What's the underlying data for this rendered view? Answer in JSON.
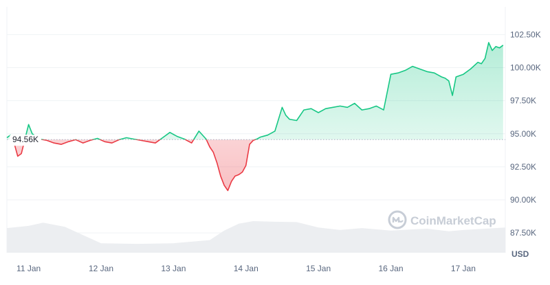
{
  "chart_data": {
    "type": "area",
    "currency_unit": "USD",
    "baseline_value": 94560,
    "baseline_label": "94.56K",
    "y_ticks": [
      {
        "value": 87500,
        "label": "87.50K"
      },
      {
        "value": 90000,
        "label": "90.00K"
      },
      {
        "value": 92500,
        "label": "92.50K"
      },
      {
        "value": 95000,
        "label": "95.00K"
      },
      {
        "value": 97500,
        "label": "97.50K"
      },
      {
        "value": 100000,
        "label": "100.00K"
      },
      {
        "value": 102500,
        "label": "102.50K"
      }
    ],
    "x_ticks": [
      {
        "value": 11,
        "label": "11 Jan"
      },
      {
        "value": 12,
        "label": "12 Jan"
      },
      {
        "value": 13,
        "label": "13 Jan"
      },
      {
        "value": 14,
        "label": "14 Jan"
      },
      {
        "value": 15,
        "label": "15 Jan"
      },
      {
        "value": 16,
        "label": "16 Jan"
      },
      {
        "value": 17,
        "label": "17 Jan"
      }
    ],
    "x_range": [
      10.7,
      17.58
    ],
    "y_range": [
      86000,
      104600
    ],
    "price": {
      "x": [
        10.7,
        10.75,
        10.8,
        10.85,
        10.9,
        10.95,
        11.0,
        11.05,
        11.1,
        11.15,
        11.25,
        11.35,
        11.45,
        11.55,
        11.65,
        11.75,
        11.85,
        11.95,
        12.05,
        12.15,
        12.25,
        12.35,
        12.45,
        12.55,
        12.65,
        12.75,
        12.85,
        12.95,
        13.05,
        13.15,
        13.25,
        13.35,
        13.45,
        13.5,
        13.55,
        13.6,
        13.65,
        13.7,
        13.75,
        13.8,
        13.85,
        13.9,
        13.95,
        14.0,
        14.05,
        14.1,
        14.15,
        14.2,
        14.3,
        14.4,
        14.5,
        14.55,
        14.6,
        14.7,
        14.8,
        14.9,
        15.0,
        15.1,
        15.2,
        15.3,
        15.4,
        15.5,
        15.6,
        15.7,
        15.8,
        15.9,
        16.0,
        16.1,
        16.2,
        16.3,
        16.4,
        16.5,
        16.6,
        16.7,
        16.75,
        16.8,
        16.85,
        16.9,
        17.0,
        17.1,
        17.2,
        17.25,
        17.3,
        17.35,
        17.4,
        17.45,
        17.5,
        17.55
      ],
      "y": [
        94700,
        94900,
        94300,
        93300,
        93500,
        94600,
        95700,
        95000,
        94800,
        94600,
        94500,
        94300,
        94200,
        94400,
        94550,
        94300,
        94500,
        94650,
        94400,
        94300,
        94550,
        94700,
        94600,
        94500,
        94400,
        94300,
        94700,
        95100,
        94800,
        94600,
        94300,
        95200,
        94600,
        94000,
        93600,
        92800,
        91800,
        91100,
        90700,
        91400,
        91800,
        91900,
        92100,
        92600,
        94200,
        94500,
        94600,
        94750,
        94900,
        95200,
        97000,
        96400,
        96100,
        96000,
        96800,
        96900,
        96600,
        96900,
        97000,
        97100,
        97000,
        97300,
        96800,
        96900,
        97100,
        96800,
        99500,
        99600,
        99800,
        100100,
        99900,
        99700,
        99600,
        99300,
        99200,
        99000,
        97900,
        99300,
        99500,
        99900,
        100400,
        100300,
        100700,
        101900,
        101300,
        101600,
        101500,
        101700
      ]
    },
    "volume_series": {
      "x": [
        10.7,
        11.0,
        11.2,
        11.5,
        12.0,
        12.5,
        13.0,
        13.5,
        13.7,
        13.9,
        14.1,
        14.4,
        14.7,
        15.0,
        15.3,
        15.6,
        16.0,
        16.3,
        16.5,
        16.8,
        17.0,
        17.3,
        17.58
      ],
      "v": [
        0.78,
        0.85,
        0.95,
        0.82,
        0.3,
        0.28,
        0.3,
        0.4,
        0.7,
        0.92,
        1.0,
        0.98,
        0.97,
        0.8,
        0.72,
        0.78,
        0.7,
        0.74,
        0.76,
        0.68,
        0.72,
        0.76,
        0.8
      ]
    },
    "colors": {
      "up": "#16c784",
      "down": "#ea3943",
      "grid": "#eff2f5",
      "axis_text": "#58667e",
      "volume": "#eceef1"
    },
    "grid": true
  },
  "watermark": {
    "text": "CoinMarketCap",
    "icon": "coinmarketcap-logo-icon"
  }
}
